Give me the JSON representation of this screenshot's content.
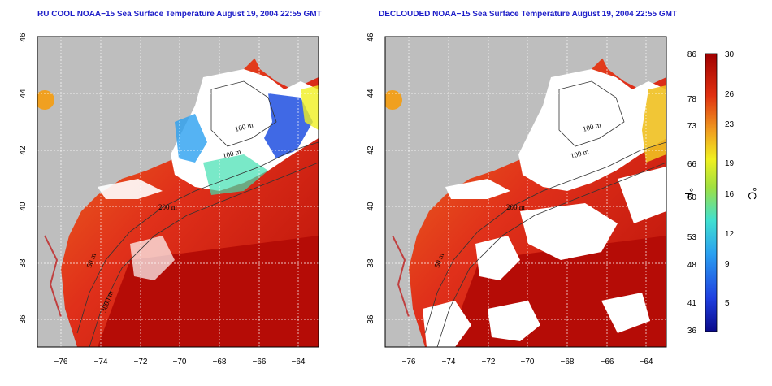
{
  "left_panel": {
    "title": "RU COOL NOAA−15 Sea Surface Temperature August 19, 2004 22:55 GMT"
  },
  "right_panel": {
    "title": "DECLOUDED NOAA−15 Sea Surface Temperature August 19, 2004 22:55 GMT"
  },
  "axes": {
    "lon_ticks": [
      "−76",
      "−74",
      "−72",
      "−70",
      "−68",
      "−66",
      "−64"
    ],
    "lat_ticks": [
      "36",
      "38",
      "40",
      "42",
      "44",
      "46"
    ],
    "lon_range": [
      -77,
      -63
    ],
    "lat_range": [
      35,
      46
    ]
  },
  "contour_labels": [
    "100 m",
    "100 m",
    "200 m",
    "50 m",
    "3000 m"
  ],
  "colorbar": {
    "fahrenheit_label": "°F",
    "celsius_label": "°C",
    "fahrenheit_ticks": [
      "86",
      "78",
      "73",
      "66",
      "60",
      "53",
      "48",
      "41",
      "36"
    ],
    "celsius_ticks": [
      "30",
      "26",
      "23",
      "19",
      "16",
      "12",
      "9",
      "5"
    ],
    "range_celsius": [
      2,
      30
    ],
    "colors": [
      "#0a0a8a",
      "#1f3fe0",
      "#2aa0f0",
      "#40e0d0",
      "#a0e040",
      "#f0f020",
      "#f0a020",
      "#e03010",
      "#a00000"
    ]
  },
  "map_colors": {
    "land": "#bebebe",
    "cloud": "#ffffff",
    "warm_ocean": "#e02a10",
    "hot_ocean": "#c01008",
    "orange_ocean": "#f06a18"
  }
}
